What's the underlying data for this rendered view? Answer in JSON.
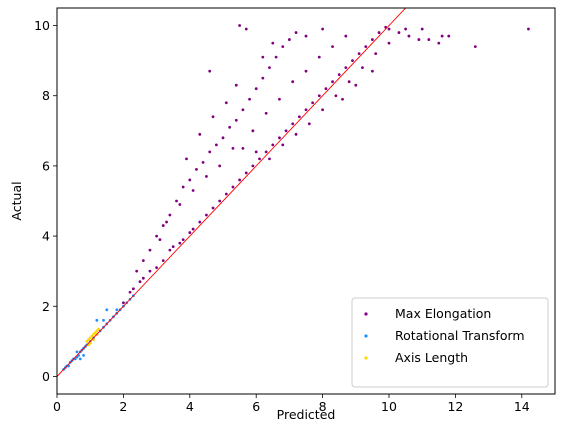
{
  "chart_data": {
    "type": "scatter",
    "xlabel": "Predicted",
    "ylabel": "Actual",
    "xlim": [
      0,
      15
    ],
    "ylim": [
      -0.5,
      10.5
    ],
    "xticks": [
      "0",
      "2",
      "4",
      "6",
      "8",
      "10",
      "12",
      "14"
    ],
    "yticks": [
      "0",
      "2",
      "4",
      "6",
      "8",
      "10"
    ],
    "xtick_values": [
      0,
      2,
      4,
      6,
      8,
      10,
      12,
      14
    ],
    "ytick_values": [
      0,
      2,
      4,
      6,
      8,
      10
    ],
    "grid": false,
    "legend_position": "lower-right",
    "reference_line": {
      "slope": 1,
      "intercept": 0,
      "color": "#ff0000"
    },
    "series": [
      {
        "name": "Max Elongation",
        "color": "#800080",
        "points": [
          [
            2.0,
            2.1
          ],
          [
            2.2,
            2.4
          ],
          [
            2.3,
            2.5
          ],
          [
            2.5,
            2.7
          ],
          [
            2.6,
            2.8
          ],
          [
            2.8,
            3.0
          ],
          [
            3.0,
            3.1
          ],
          [
            3.2,
            3.3
          ],
          [
            3.4,
            3.6
          ],
          [
            3.5,
            3.7
          ],
          [
            3.7,
            3.8
          ],
          [
            3.8,
            3.9
          ],
          [
            4.0,
            4.1
          ],
          [
            4.1,
            4.2
          ],
          [
            4.3,
            4.4
          ],
          [
            4.5,
            4.6
          ],
          [
            4.7,
            4.8
          ],
          [
            4.9,
            5.0
          ],
          [
            5.1,
            5.2
          ],
          [
            5.3,
            5.4
          ],
          [
            5.5,
            5.6
          ],
          [
            5.7,
            5.8
          ],
          [
            5.9,
            6.0
          ],
          [
            6.1,
            6.2
          ],
          [
            6.3,
            6.4
          ],
          [
            6.5,
            6.6
          ],
          [
            6.7,
            6.8
          ],
          [
            6.9,
            7.0
          ],
          [
            7.1,
            7.2
          ],
          [
            7.3,
            7.4
          ],
          [
            7.5,
            7.6
          ],
          [
            7.7,
            7.8
          ],
          [
            7.9,
            8.0
          ],
          [
            8.1,
            8.2
          ],
          [
            8.3,
            8.4
          ],
          [
            8.5,
            8.6
          ],
          [
            8.7,
            8.8
          ],
          [
            8.9,
            9.0
          ],
          [
            9.1,
            9.2
          ],
          [
            9.3,
            9.4
          ],
          [
            9.5,
            9.6
          ],
          [
            9.7,
            9.8
          ],
          [
            9.9,
            9.95
          ],
          [
            10.0,
            9.9
          ],
          [
            2.4,
            3.0
          ],
          [
            2.6,
            3.3
          ],
          [
            2.8,
            3.6
          ],
          [
            3.0,
            4.0
          ],
          [
            3.2,
            4.3
          ],
          [
            3.4,
            4.6
          ],
          [
            3.6,
            5.0
          ],
          [
            3.8,
            5.4
          ],
          [
            4.0,
            5.6
          ],
          [
            4.2,
            5.9
          ],
          [
            4.4,
            6.1
          ],
          [
            4.6,
            6.4
          ],
          [
            4.8,
            6.6
          ],
          [
            5.0,
            6.8
          ],
          [
            5.2,
            7.1
          ],
          [
            5.4,
            7.3
          ],
          [
            5.6,
            7.6
          ],
          [
            5.8,
            7.9
          ],
          [
            6.0,
            8.2
          ],
          [
            6.2,
            8.5
          ],
          [
            6.4,
            8.8
          ],
          [
            6.6,
            9.1
          ],
          [
            6.8,
            9.4
          ],
          [
            7.0,
            9.6
          ],
          [
            7.2,
            9.8
          ],
          [
            5.5,
            10.0
          ],
          [
            5.7,
            9.9
          ],
          [
            6.5,
            9.5
          ],
          [
            7.5,
            9.7
          ],
          [
            8.0,
            9.9
          ],
          [
            3.1,
            3.9
          ],
          [
            3.3,
            4.4
          ],
          [
            3.7,
            4.9
          ],
          [
            4.1,
            5.3
          ],
          [
            4.5,
            5.7
          ],
          [
            4.9,
            6.0
          ],
          [
            5.3,
            6.5
          ],
          [
            5.9,
            7.0
          ],
          [
            6.3,
            7.5
          ],
          [
            6.7,
            7.9
          ],
          [
            7.1,
            8.4
          ],
          [
            7.5,
            8.7
          ],
          [
            7.9,
            9.1
          ],
          [
            8.3,
            9.4
          ],
          [
            8.7,
            9.7
          ],
          [
            4.6,
            8.7
          ],
          [
            5.4,
            8.3
          ],
          [
            6.2,
            9.1
          ],
          [
            5.1,
            7.8
          ],
          [
            4.3,
            6.9
          ],
          [
            3.9,
            6.2
          ],
          [
            4.7,
            7.4
          ],
          [
            5.6,
            6.5
          ],
          [
            6.0,
            6.4
          ],
          [
            6.4,
            6.2
          ],
          [
            6.8,
            6.6
          ],
          [
            7.2,
            6.9
          ],
          [
            7.6,
            7.2
          ],
          [
            8.0,
            7.6
          ],
          [
            8.4,
            8.0
          ],
          [
            8.8,
            8.4
          ],
          [
            9.2,
            8.8
          ],
          [
            9.6,
            9.2
          ],
          [
            10.0,
            9.5
          ],
          [
            9.5,
            8.7
          ],
          [
            9.0,
            8.3
          ],
          [
            8.6,
            7.9
          ],
          [
            10.3,
            9.8
          ],
          [
            10.6,
            9.7
          ],
          [
            10.9,
            9.6
          ],
          [
            11.2,
            9.6
          ],
          [
            11.5,
            9.5
          ],
          [
            11.8,
            9.7
          ],
          [
            12.6,
            9.4
          ],
          [
            14.2,
            9.9
          ],
          [
            10.5,
            9.9
          ],
          [
            11.0,
            9.9
          ],
          [
            11.6,
            9.7
          ]
        ]
      },
      {
        "name": "Rotational Transform",
        "color": "#1e90ff",
        "points": [
          [
            0.2,
            0.2
          ],
          [
            0.25,
            0.25
          ],
          [
            0.3,
            0.3
          ],
          [
            0.35,
            0.3
          ],
          [
            0.4,
            0.4
          ],
          [
            0.45,
            0.45
          ],
          [
            0.5,
            0.5
          ],
          [
            0.55,
            0.5
          ],
          [
            0.6,
            0.55
          ],
          [
            0.65,
            0.6
          ],
          [
            0.7,
            0.7
          ],
          [
            0.75,
            0.75
          ],
          [
            0.8,
            0.8
          ],
          [
            0.85,
            0.85
          ],
          [
            0.9,
            0.9
          ],
          [
            1.0,
            1.0
          ],
          [
            1.1,
            1.1
          ],
          [
            1.2,
            1.2
          ],
          [
            1.3,
            1.3
          ],
          [
            1.4,
            1.4
          ],
          [
            1.5,
            1.5
          ],
          [
            1.6,
            1.6
          ],
          [
            1.7,
            1.7
          ],
          [
            1.8,
            1.8
          ],
          [
            1.9,
            1.9
          ],
          [
            2.0,
            2.0
          ],
          [
            2.1,
            2.1
          ],
          [
            2.2,
            2.2
          ],
          [
            1.5,
            1.9
          ],
          [
            1.2,
            1.6
          ],
          [
            0.7,
            0.5
          ],
          [
            0.8,
            0.6
          ],
          [
            0.6,
            0.7
          ],
          [
            1.4,
            1.6
          ],
          [
            1.8,
            1.9
          ],
          [
            2.3,
            2.3
          ]
        ]
      },
      {
        "name": "Axis Length",
        "color": "#ffd700",
        "points": [
          [
            0.9,
            1.0
          ],
          [
            0.95,
            1.05
          ],
          [
            1.0,
            1.1
          ],
          [
            1.05,
            1.15
          ],
          [
            1.1,
            1.2
          ],
          [
            1.15,
            1.25
          ],
          [
            1.2,
            1.3
          ],
          [
            1.25,
            1.35
          ],
          [
            1.0,
            0.95
          ],
          [
            1.1,
            1.05
          ],
          [
            0.95,
            0.9
          ],
          [
            1.2,
            1.2
          ]
        ]
      }
    ]
  }
}
